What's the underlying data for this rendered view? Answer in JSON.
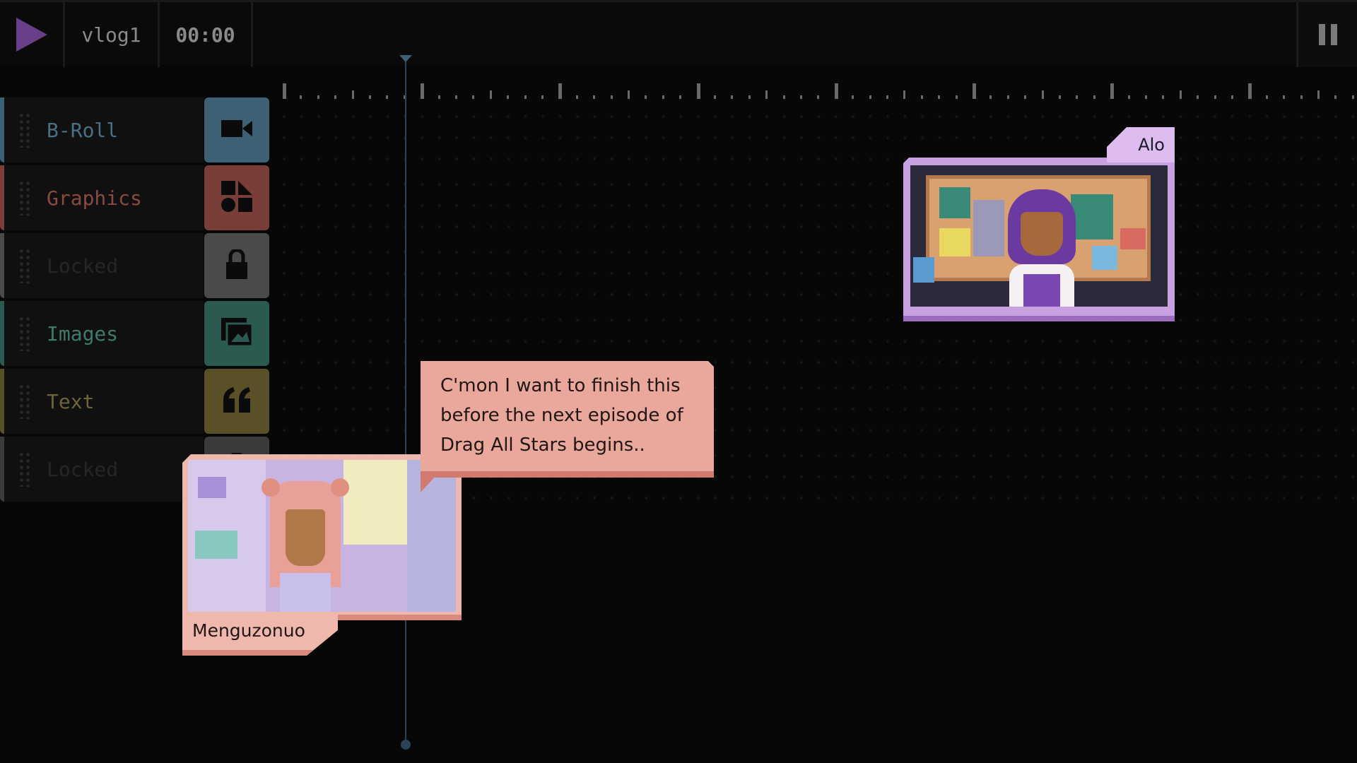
{
  "header": {
    "play_icon": "play-icon",
    "project_name": "vlog1",
    "timecode": "00:00",
    "pause_icon": "pause-icon"
  },
  "tracks": [
    {
      "label": "B-Roll",
      "icon": "video-camera-icon",
      "color": "#3d6074",
      "text_color": "#4a7085"
    },
    {
      "label": "Graphics",
      "icon": "shapes-icon",
      "color": "#7a3e38",
      "text_color": "#8a4a40"
    },
    {
      "label": "Locked",
      "icon": "lock-icon",
      "color": "#4a4a4a",
      "text_color": "#262626"
    },
    {
      "label": "Images",
      "icon": "image-icon",
      "color": "#2a5a50",
      "text_color": "#3f7a6c"
    },
    {
      "label": "Text",
      "icon": "quote-icon",
      "color": "#5a5028",
      "text_color": "#6e6438"
    },
    {
      "label": "Locked",
      "icon": "lock-icon",
      "color": "#3a3a3a",
      "text_color": "#262626"
    }
  ],
  "dialogue": {
    "speaker_top": "Alo",
    "message": "C'mon I want to finish this before the next episode of Drag All Stars begins..",
    "speaker_bottom": "Menguzonuo"
  },
  "colors": {
    "accent": "#6a3f8a",
    "bubble": "#eaa89c",
    "alo_frame": "#c9a0e0"
  }
}
